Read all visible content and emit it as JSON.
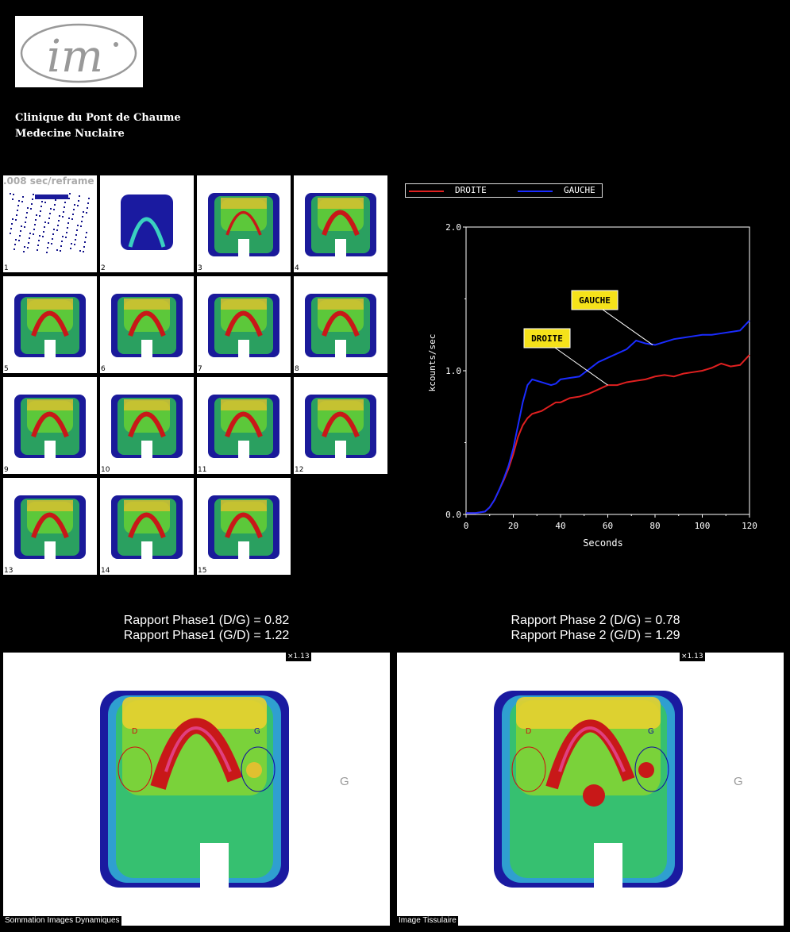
{
  "header": {
    "logo_text": "im",
    "clinic_name": "Clinique du Pont de Chaume",
    "department": "Medecine Nuclaire"
  },
  "frames": {
    "rate_label": ".008 sec/reframe",
    "items": [
      {
        "number": "1"
      },
      {
        "number": "2"
      },
      {
        "number": "3"
      },
      {
        "number": "4"
      },
      {
        "number": "5"
      },
      {
        "number": "6"
      },
      {
        "number": "7"
      },
      {
        "number": "8"
      },
      {
        "number": "9"
      },
      {
        "number": "10"
      },
      {
        "number": "11"
      },
      {
        "number": "12"
      },
      {
        "number": "13"
      },
      {
        "number": "14"
      },
      {
        "number": "15"
      }
    ]
  },
  "legend": {
    "droite": "DROITE",
    "gauche": "GAUCHE"
  },
  "chart_data": {
    "type": "line",
    "xlabel": "Seconds",
    "ylabel": "kcounts/sec",
    "xlim": [
      0,
      120
    ],
    "ylim": [
      0,
      2.0
    ],
    "x_ticks": [
      "0",
      "20",
      "40",
      "60",
      "80",
      "100",
      "120"
    ],
    "y_ticks": [
      "0.0",
      "1.0",
      "2.0"
    ],
    "colors": {
      "droite": "#e02020",
      "gauche": "#1a2cff"
    },
    "annotations": [
      {
        "text": "GAUCHE",
        "series": "GAUCHE",
        "x": 79,
        "y": 1.18
      },
      {
        "text": "DROITE",
        "series": "DROITE",
        "x": 60,
        "y": 0.9
      }
    ],
    "x": [
      0,
      4,
      8,
      10,
      12,
      14,
      16,
      18,
      20,
      22,
      24,
      26,
      28,
      30,
      32,
      34,
      36,
      38,
      40,
      44,
      48,
      52,
      56,
      60,
      64,
      68,
      72,
      76,
      80,
      84,
      88,
      92,
      96,
      100,
      104,
      108,
      112,
      116,
      120
    ],
    "series": [
      {
        "name": "DROITE",
        "values": [
          0.01,
          0.01,
          0.02,
          0.05,
          0.1,
          0.17,
          0.24,
          0.32,
          0.42,
          0.54,
          0.62,
          0.67,
          0.7,
          0.71,
          0.72,
          0.74,
          0.76,
          0.78,
          0.78,
          0.81,
          0.82,
          0.84,
          0.87,
          0.9,
          0.9,
          0.92,
          0.93,
          0.94,
          0.96,
          0.97,
          0.96,
          0.98,
          0.99,
          1.0,
          1.02,
          1.05,
          1.03,
          1.04,
          1.11
        ]
      },
      {
        "name": "GAUCHE",
        "values": [
          0.01,
          0.01,
          0.02,
          0.05,
          0.1,
          0.17,
          0.25,
          0.34,
          0.46,
          0.62,
          0.78,
          0.9,
          0.94,
          0.93,
          0.92,
          0.91,
          0.9,
          0.91,
          0.94,
          0.95,
          0.96,
          1.01,
          1.06,
          1.09,
          1.12,
          1.15,
          1.21,
          1.19,
          1.18,
          1.2,
          1.22,
          1.23,
          1.24,
          1.25,
          1.25,
          1.26,
          1.27,
          1.28,
          1.35
        ]
      }
    ]
  },
  "ratios": {
    "phase1_dg": "Rapport Phase1 (D/G) = 0.82",
    "phase1_gd": "Rapport Phase1 (G/D) = 1.22",
    "phase2_dg": "Rapport Phase 2 (D/G) = 0.78",
    "phase2_gd": "Rapport Phase 2 (G/D) = 1.29"
  },
  "panels": {
    "left": {
      "caption": "Sommation Images Dynamiques",
      "zoom": "×1.13",
      "roi_d": "D",
      "roi_g": "G",
      "side_label": "G"
    },
    "right": {
      "caption": "Image Tissulaire",
      "zoom": "×1.13",
      "roi_d": "D",
      "roi_g": "G",
      "side_label": "G"
    }
  }
}
